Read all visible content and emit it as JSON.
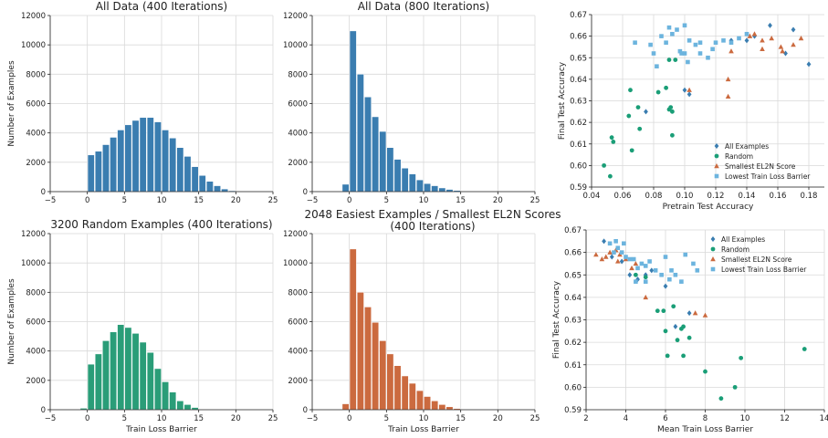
{
  "colors": {
    "blue": "#3a7db0",
    "green": "#2a9d78",
    "orange": "#cb6a3f",
    "lightblue": "#6cb4de",
    "seagreen": "#1a9e77"
  },
  "chart_data": [
    {
      "id": "hist-all-400",
      "type": "bar",
      "title": "All Data (400 Iterations)",
      "xlabel": "",
      "ylabel": "Number of Examples",
      "xlim": [
        -5,
        25
      ],
      "ylim": [
        0,
        12000
      ],
      "xticks": [
        "−5",
        "0",
        "5",
        "10",
        "15",
        "20",
        "25"
      ],
      "xtick_values": [
        -5,
        0,
        5,
        10,
        15,
        20,
        25
      ],
      "yticks": [
        "0",
        "2000",
        "4000",
        "6000",
        "8000",
        "10000",
        "12000"
      ],
      "ytick_values": [
        0,
        2000,
        4000,
        6000,
        8000,
        10000,
        12000
      ],
      "color": "blue",
      "bin_start": 0,
      "bin_width": 1,
      "values": [
        2500,
        2750,
        3200,
        3700,
        4200,
        4550,
        4850,
        5050,
        5050,
        4750,
        4200,
        3650,
        3000,
        2400,
        1700,
        1100,
        700,
        400,
        180,
        60
      ]
    },
    {
      "id": "hist-all-800",
      "type": "bar",
      "title": "All Data (800 Iterations)",
      "xlabel": "",
      "ylabel": "",
      "xlim": [
        -5,
        25
      ],
      "ylim": [
        0,
        12000
      ],
      "xticks": [
        "−5",
        "0",
        "5",
        "10",
        "15",
        "20",
        "25"
      ],
      "xtick_values": [
        -5,
        0,
        5,
        10,
        15,
        20,
        25
      ],
      "yticks": [
        "0",
        "2000",
        "4000",
        "6000",
        "8000",
        "10000",
        "12000"
      ],
      "ytick_values": [
        0,
        2000,
        4000,
        6000,
        8000,
        10000,
        12000
      ],
      "color": "blue",
      "bin_start": -1,
      "bin_width": 1,
      "values": [
        500,
        10950,
        8000,
        6450,
        5100,
        4100,
        3000,
        2200,
        1600,
        1200,
        800,
        550,
        400,
        250,
        150,
        80
      ]
    },
    {
      "id": "hist-random-3200",
      "type": "bar",
      "title": "3200 Random Examples (400 Iterations)",
      "xlabel": "Train Loss Barrier",
      "ylabel": "Number of Examples",
      "xlim": [
        -5,
        25
      ],
      "ylim": [
        0,
        12000
      ],
      "xticks": [
        "−5",
        "0",
        "5",
        "10",
        "15",
        "20",
        "25"
      ],
      "xtick_values": [
        -5,
        0,
        5,
        10,
        15,
        20,
        25
      ],
      "yticks": [
        "0",
        "2000",
        "4000",
        "6000",
        "8000",
        "10000",
        "12000"
      ],
      "ytick_values": [
        0,
        2000,
        4000,
        6000,
        8000,
        10000,
        12000
      ],
      "color": "green",
      "bin_start": -1,
      "bin_width": 1,
      "values": [
        100,
        3100,
        3800,
        4700,
        5300,
        5800,
        5600,
        5200,
        4600,
        3900,
        2800,
        1900,
        1200,
        600,
        350,
        150
      ]
    },
    {
      "id": "hist-easiest-2048",
      "type": "bar",
      "title": "2048 Easiest Examples / Smallest EL2N Scores",
      "title_line2": "(400 Iterations)",
      "xlabel": "Train Loss Barrier",
      "ylabel": "",
      "xlim": [
        -5,
        25
      ],
      "ylim": [
        0,
        12000
      ],
      "xticks": [
        "−5",
        "0",
        "5",
        "10",
        "15",
        "20",
        "25"
      ],
      "xtick_values": [
        -5,
        0,
        5,
        10,
        15,
        20,
        25
      ],
      "yticks": [
        "0",
        "2000",
        "4000",
        "6000",
        "8000",
        "10000",
        "12000"
      ],
      "ytick_values": [
        0,
        2000,
        4000,
        6000,
        8000,
        10000,
        12000
      ],
      "color": "orange",
      "bin_start": -1,
      "bin_width": 1,
      "values": [
        400,
        10950,
        8000,
        7000,
        5950,
        4700,
        3800,
        3000,
        2300,
        1800,
        1300,
        900,
        600,
        350,
        200,
        80
      ]
    },
    {
      "id": "scatter-pretrain",
      "type": "scatter",
      "title": "",
      "xlabel": "Pretrain Test Accuracy",
      "ylabel": "Final Test Accuracy",
      "xlim": [
        0.04,
        0.19
      ],
      "ylim": [
        0.59,
        0.67
      ],
      "xticks": [
        "0.04",
        "0.06",
        "0.08",
        "0.10",
        "0.12",
        "0.14",
        "0.16",
        "0.18"
      ],
      "xtick_values": [
        0.04,
        0.06,
        0.08,
        0.1,
        0.12,
        0.14,
        0.16,
        0.18
      ],
      "yticks": [
        "0.59",
        "0.60",
        "0.61",
        "0.62",
        "0.63",
        "0.64",
        "0.65",
        "0.66",
        "0.67"
      ],
      "ytick_values": [
        0.59,
        0.6,
        0.61,
        0.62,
        0.63,
        0.64,
        0.65,
        0.66,
        0.67
      ],
      "legend_position": "bottom-right",
      "series": [
        {
          "name": "All Examples",
          "marker": "diamond",
          "color": "blue",
          "points": [
            [
              0.075,
              0.625
            ],
            [
              0.1,
              0.635
            ],
            [
              0.103,
              0.633
            ],
            [
              0.13,
              0.658
            ],
            [
              0.14,
              0.658
            ],
            [
              0.145,
              0.66
            ],
            [
              0.155,
              0.665
            ],
            [
              0.17,
              0.663
            ],
            [
              0.18,
              0.647
            ],
            [
              0.165,
              0.652
            ]
          ]
        },
        {
          "name": "Random",
          "marker": "circle",
          "color": "seagreen",
          "points": [
            [
              0.048,
              0.6
            ],
            [
              0.052,
              0.595
            ],
            [
              0.053,
              0.613
            ],
            [
              0.054,
              0.611
            ],
            [
              0.064,
              0.623
            ],
            [
              0.065,
              0.635
            ],
            [
              0.066,
              0.607
            ],
            [
              0.07,
              0.627
            ],
            [
              0.071,
              0.617
            ],
            [
              0.083,
              0.634
            ],
            [
              0.088,
              0.636
            ],
            [
              0.09,
              0.626
            ],
            [
              0.091,
              0.627
            ],
            [
              0.092,
              0.625
            ],
            [
              0.092,
              0.614
            ],
            [
              0.09,
              0.649
            ],
            [
              0.094,
              0.649
            ]
          ]
        },
        {
          "name": "Smallest EL2N Score",
          "marker": "triangle",
          "color": "orange",
          "points": [
            [
              0.103,
              0.635
            ],
            [
              0.128,
              0.64
            ],
            [
              0.128,
              0.632
            ],
            [
              0.13,
              0.653
            ],
            [
              0.142,
              0.66
            ],
            [
              0.145,
              0.661
            ],
            [
              0.15,
              0.658
            ],
            [
              0.156,
              0.659
            ],
            [
              0.162,
              0.655
            ],
            [
              0.163,
              0.653
            ],
            [
              0.17,
              0.656
            ],
            [
              0.175,
              0.659
            ],
            [
              0.15,
              0.654
            ]
          ]
        },
        {
          "name": "Lowest Train Loss Barrier",
          "marker": "square",
          "color": "lightblue",
          "points": [
            [
              0.068,
              0.657
            ],
            [
              0.078,
              0.656
            ],
            [
              0.08,
              0.652
            ],
            [
              0.082,
              0.646
            ],
            [
              0.085,
              0.66
            ],
            [
              0.088,
              0.657
            ],
            [
              0.09,
              0.664
            ],
            [
              0.092,
              0.661
            ],
            [
              0.095,
              0.663
            ],
            [
              0.097,
              0.653
            ],
            [
              0.098,
              0.652
            ],
            [
              0.1,
              0.652
            ],
            [
              0.1,
              0.665
            ],
            [
              0.103,
              0.658
            ],
            [
              0.107,
              0.656
            ],
            [
              0.11,
              0.657
            ],
            [
              0.118,
              0.654
            ],
            [
              0.12,
              0.657
            ],
            [
              0.125,
              0.658
            ],
            [
              0.13,
              0.657
            ],
            [
              0.135,
              0.659
            ],
            [
              0.14,
              0.661
            ],
            [
              0.11,
              0.652
            ],
            [
              0.115,
              0.65
            ],
            [
              0.102,
              0.648
            ]
          ]
        }
      ]
    },
    {
      "id": "scatter-mean-barrier",
      "type": "scatter",
      "title": "",
      "xlabel": "Mean Train Loss Barrier",
      "ylabel": "Final Test Accuracy",
      "xlim": [
        2,
        14
      ],
      "ylim": [
        0.59,
        0.67
      ],
      "xticks": [
        "2",
        "4",
        "6",
        "8",
        "10",
        "12",
        "14"
      ],
      "xtick_values": [
        2,
        4,
        6,
        8,
        10,
        12,
        14
      ],
      "yticks": [
        "0.59",
        "0.60",
        "0.61",
        "0.62",
        "0.63",
        "0.64",
        "0.65",
        "0.66",
        "0.67"
      ],
      "ytick_values": [
        0.59,
        0.6,
        0.61,
        0.62,
        0.63,
        0.64,
        0.65,
        0.66,
        0.67
      ],
      "legend_position": "top-right",
      "series": [
        {
          "name": "All Examples",
          "marker": "diamond",
          "color": "blue",
          "points": [
            [
              2.9,
              0.665
            ],
            [
              3.3,
              0.658
            ],
            [
              3.8,
              0.656
            ],
            [
              4.2,
              0.65
            ],
            [
              4.6,
              0.648
            ],
            [
              5.0,
              0.65
            ],
            [
              5.3,
              0.652
            ],
            [
              6.5,
              0.627
            ],
            [
              7.2,
              0.633
            ],
            [
              6.0,
              0.645
            ]
          ]
        },
        {
          "name": "Random",
          "marker": "circle",
          "color": "seagreen",
          "points": [
            [
              5.6,
              0.634
            ],
            [
              5.9,
              0.634
            ],
            [
              6.0,
              0.625
            ],
            [
              6.1,
              0.614
            ],
            [
              6.4,
              0.636
            ],
            [
              6.8,
              0.626
            ],
            [
              6.9,
              0.627
            ],
            [
              6.9,
              0.614
            ],
            [
              7.2,
              0.622
            ],
            [
              8.0,
              0.607
            ],
            [
              8.8,
              0.595
            ],
            [
              9.5,
              0.6
            ],
            [
              9.8,
              0.613
            ],
            [
              13.0,
              0.617
            ],
            [
              5.0,
              0.649
            ],
            [
              4.5,
              0.65
            ],
            [
              6.6,
              0.621
            ]
          ]
        },
        {
          "name": "Smallest EL2N Score",
          "marker": "triangle",
          "color": "orange",
          "points": [
            [
              2.5,
              0.659
            ],
            [
              2.8,
              0.657
            ],
            [
              3.0,
              0.658
            ],
            [
              3.2,
              0.66
            ],
            [
              3.5,
              0.661
            ],
            [
              3.7,
              0.659
            ],
            [
              4.0,
              0.657
            ],
            [
              4.3,
              0.653
            ],
            [
              4.5,
              0.655
            ],
            [
              5.0,
              0.64
            ],
            [
              7.5,
              0.633
            ],
            [
              8.0,
              0.632
            ],
            [
              3.6,
              0.656
            ]
          ]
        },
        {
          "name": "Lowest Train Loss Barrier",
          "marker": "square",
          "color": "lightblue",
          "points": [
            [
              3.2,
              0.664
            ],
            [
              3.5,
              0.665
            ],
            [
              3.6,
              0.662
            ],
            [
              3.8,
              0.66
            ],
            [
              3.9,
              0.664
            ],
            [
              4.0,
              0.658
            ],
            [
              4.2,
              0.657
            ],
            [
              4.4,
              0.657
            ],
            [
              4.6,
              0.653
            ],
            [
              4.8,
              0.655
            ],
            [
              5.0,
              0.654
            ],
            [
              5.2,
              0.656
            ],
            [
              5.5,
              0.652
            ],
            [
              5.8,
              0.65
            ],
            [
              6.0,
              0.658
            ],
            [
              6.3,
              0.652
            ],
            [
              6.5,
              0.65
            ],
            [
              6.8,
              0.647
            ],
            [
              7.0,
              0.659
            ],
            [
              7.4,
              0.655
            ],
            [
              7.6,
              0.652
            ],
            [
              4.5,
              0.647
            ],
            [
              3.4,
              0.66
            ],
            [
              5.0,
              0.647
            ],
            [
              6.2,
              0.648
            ]
          ]
        }
      ]
    }
  ]
}
